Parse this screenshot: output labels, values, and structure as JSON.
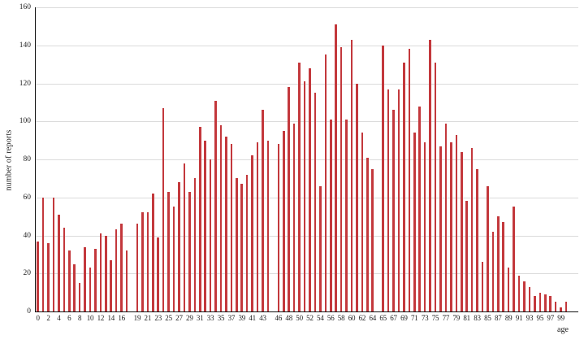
{
  "chart_data": {
    "type": "bar",
    "xlabel": "age",
    "ylabel": "number of reports",
    "ylim": [
      0,
      160
    ],
    "y_ticks": [
      0,
      20,
      40,
      60,
      80,
      100,
      120,
      140,
      160
    ],
    "grid": true,
    "legend": false,
    "bar_color": "#c3383c",
    "gridline_color": "#dbdbdb",
    "axis_color": "#111111",
    "labeled_ages": [
      "0",
      "2",
      "4",
      "6",
      "8",
      "10",
      "12",
      "14",
      "16",
      "19",
      "21",
      "23",
      "25",
      "27",
      "29",
      "31",
      "33",
      "35",
      "37",
      "39",
      "41",
      "43",
      "46",
      "48",
      "50",
      "52",
      "54",
      "56",
      "58",
      "60",
      "62",
      "64",
      "65",
      "67",
      "69",
      "71",
      "73",
      "75",
      "77",
      "79",
      "81",
      "83",
      "85",
      "87",
      "89",
      "91",
      "93",
      "95",
      "97",
      "99"
    ],
    "slots": [
      {
        "age": "0",
        "value": 37
      },
      {
        "age": "1",
        "value": 60
      },
      {
        "age": "2",
        "value": 36
      },
      {
        "age": "3",
        "value": 60
      },
      {
        "age": "4",
        "value": 51
      },
      {
        "age": "5",
        "value": 44
      },
      {
        "age": "6",
        "value": 32
      },
      {
        "age": "7",
        "value": 25
      },
      {
        "age": "8",
        "value": 15
      },
      {
        "age": "9",
        "value": 34
      },
      {
        "age": "10",
        "value": 23
      },
      {
        "age": "11",
        "value": 33
      },
      {
        "age": "12",
        "value": 41
      },
      {
        "age": "13",
        "value": 40
      },
      {
        "age": "14",
        "value": 27
      },
      {
        "age": "15",
        "value": 43
      },
      {
        "age": "16",
        "value": 46
      },
      {
        "age": "17",
        "value": 32
      },
      {
        "age": "18",
        "value": 0
      },
      {
        "age": "19",
        "value": 46
      },
      {
        "age": "20",
        "value": 52
      },
      {
        "age": "21",
        "value": 52
      },
      {
        "age": "22",
        "value": 62
      },
      {
        "age": "23",
        "value": 39
      },
      {
        "age": "24",
        "value": 107
      },
      {
        "age": "25",
        "value": 63
      },
      {
        "age": "26",
        "value": 55
      },
      {
        "age": "27",
        "value": 68
      },
      {
        "age": "28",
        "value": 78
      },
      {
        "age": "29",
        "value": 63
      },
      {
        "age": "30",
        "value": 70
      },
      {
        "age": "31",
        "value": 97
      },
      {
        "age": "32",
        "value": 90
      },
      {
        "age": "33",
        "value": 80
      },
      {
        "age": "34",
        "value": 111
      },
      {
        "age": "35",
        "value": 98
      },
      {
        "age": "36",
        "value": 92
      },
      {
        "age": "37",
        "value": 88
      },
      {
        "age": "38",
        "value": 70
      },
      {
        "age": "39",
        "value": 67
      },
      {
        "age": "40",
        "value": 72
      },
      {
        "age": "41",
        "value": 82
      },
      {
        "age": "42",
        "value": 89
      },
      {
        "age": "43",
        "value": 106
      },
      {
        "age": "44",
        "value": 90
      },
      {
        "age": "45",
        "value": 0
      },
      {
        "age": "46",
        "value": 88
      },
      {
        "age": "47",
        "value": 95
      },
      {
        "age": "48",
        "value": 118
      },
      {
        "age": "49",
        "value": 99
      },
      {
        "age": "50",
        "value": 131
      },
      {
        "age": "51",
        "value": 121
      },
      {
        "age": "52",
        "value": 128
      },
      {
        "age": "53",
        "value": 115
      },
      {
        "age": "54",
        "value": 66
      },
      {
        "age": "55",
        "value": 135
      },
      {
        "age": "56",
        "value": 101
      },
      {
        "age": "57",
        "value": 151
      },
      {
        "age": "58",
        "value": 139
      },
      {
        "age": "59",
        "value": 101
      },
      {
        "age": "60",
        "value": 143
      },
      {
        "age": "61",
        "value": 120
      },
      {
        "age": "62",
        "value": 94
      },
      {
        "age": "63",
        "value": 81
      },
      {
        "age": "64",
        "value": 75
      },
      {
        "age": "",
        "value": 0
      },
      {
        "age": "65",
        "value": 140
      },
      {
        "age": "66",
        "value": 117
      },
      {
        "age": "67",
        "value": 106
      },
      {
        "age": "68",
        "value": 117
      },
      {
        "age": "69",
        "value": 131
      },
      {
        "age": "70",
        "value": 138
      },
      {
        "age": "71",
        "value": 94
      },
      {
        "age": "72",
        "value": 108
      },
      {
        "age": "73",
        "value": 89
      },
      {
        "age": "74",
        "value": 143
      },
      {
        "age": "75",
        "value": 131
      },
      {
        "age": "76",
        "value": 87
      },
      {
        "age": "77",
        "value": 99
      },
      {
        "age": "78",
        "value": 89
      },
      {
        "age": "79",
        "value": 93
      },
      {
        "age": "80",
        "value": 84
      },
      {
        "age": "81",
        "value": 58
      },
      {
        "age": "82",
        "value": 86
      },
      {
        "age": "83",
        "value": 75
      },
      {
        "age": "84",
        "value": 26
      },
      {
        "age": "85",
        "value": 66
      },
      {
        "age": "86",
        "value": 42
      },
      {
        "age": "87",
        "value": 50
      },
      {
        "age": "88",
        "value": 47
      },
      {
        "age": "89",
        "value": 23
      },
      {
        "age": "90",
        "value": 55
      },
      {
        "age": "91",
        "value": 19
      },
      {
        "age": "92",
        "value": 16
      },
      {
        "age": "93",
        "value": 13
      },
      {
        "age": "94",
        "value": 8
      },
      {
        "age": "95",
        "value": 10
      },
      {
        "age": "96",
        "value": 9
      },
      {
        "age": "97",
        "value": 8
      },
      {
        "age": "98",
        "value": 5
      },
      {
        "age": "99",
        "value": 2
      },
      {
        "age": "100",
        "value": 5
      }
    ]
  }
}
